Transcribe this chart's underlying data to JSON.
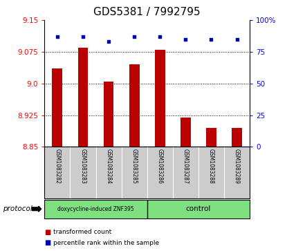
{
  "title": "GDS5381 / 7992795",
  "samples": [
    "GSM1083282",
    "GSM1083283",
    "GSM1083284",
    "GSM1083285",
    "GSM1083286",
    "GSM1083287",
    "GSM1083288",
    "GSM1083289"
  ],
  "red_values": [
    9.035,
    9.085,
    9.005,
    9.045,
    9.08,
    8.92,
    8.895,
    8.895
  ],
  "blue_values": [
    87,
    87,
    83,
    87,
    87,
    85,
    85,
    85
  ],
  "ylim_left": [
    8.85,
    9.15
  ],
  "ylim_right": [
    0,
    100
  ],
  "yticks_left": [
    8.85,
    8.925,
    9.0,
    9.075,
    9.15
  ],
  "yticks_right": [
    0,
    25,
    50,
    75,
    100
  ],
  "group1_label": "doxycycline-induced ZNF395",
  "group2_label": "control",
  "group1_count": 4,
  "group2_count": 4,
  "bar_color": "#bb0000",
  "dot_color": "#0000bb",
  "group_color": "#7EE07E",
  "protocol_label": "protocol",
  "legend_red": "transformed count",
  "legend_blue": "percentile rank within the sample",
  "tick_area_color": "#cccccc",
  "title_fontsize": 11,
  "tick_fontsize": 7.5,
  "bar_width": 0.4
}
